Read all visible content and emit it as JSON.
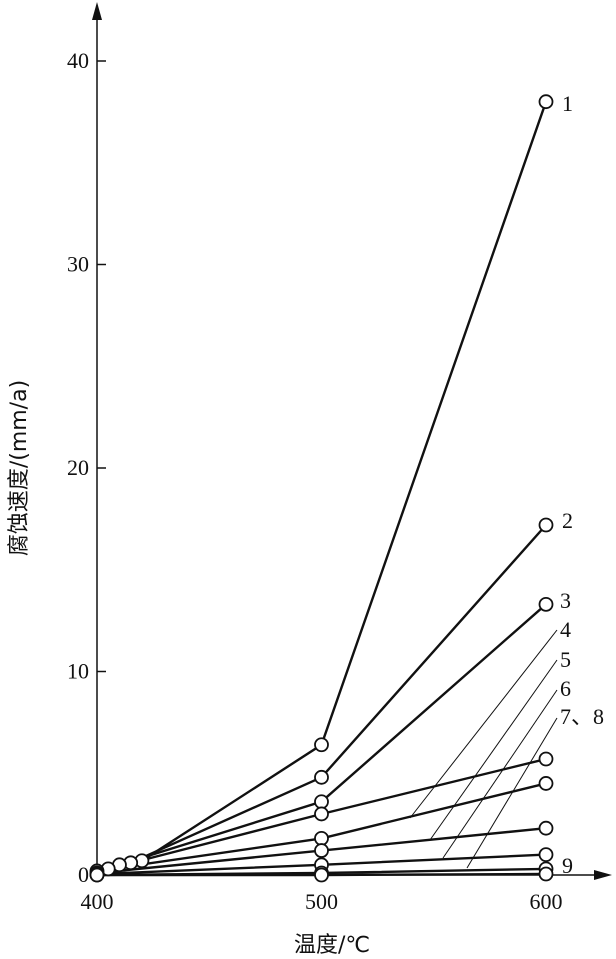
{
  "chart_data": {
    "type": "line",
    "xlabel": "温度/℃",
    "ylabel": "腐蚀速度/(mm/a)",
    "xlim": [
      400,
      600
    ],
    "ylim": [
      0,
      40
    ],
    "x_ticks": [
      "400",
      "500",
      "600"
    ],
    "y_ticks": [
      "0",
      "10",
      "20",
      "30",
      "40"
    ],
    "grid": false,
    "series": [
      {
        "name": "1",
        "x": [
          420,
          500,
          600
        ],
        "y": [
          0.7,
          6.4,
          38.0
        ]
      },
      {
        "name": "2",
        "x": [
          415,
          500,
          600
        ],
        "y": [
          0.6,
          4.8,
          17.2
        ]
      },
      {
        "name": "3",
        "x": [
          410,
          500,
          600
        ],
        "y": [
          0.5,
          3.6,
          13.3
        ]
      },
      {
        "name": "4",
        "x": [
          405,
          500,
          600
        ],
        "y": [
          0.3,
          3.0,
          5.7
        ]
      },
      {
        "name": "5",
        "x": [
          400,
          500,
          600
        ],
        "y": [
          0.2,
          1.8,
          4.5
        ]
      },
      {
        "name": "6",
        "x": [
          400,
          500,
          600
        ],
        "y": [
          0.1,
          1.2,
          2.3
        ]
      },
      {
        "name": "7、8",
        "x": [
          400,
          500,
          600
        ],
        "y": [
          0.05,
          0.5,
          1.0
        ]
      },
      {
        "name": "9",
        "x": [
          400,
          500,
          600
        ],
        "y": [
          0.0,
          0.1,
          0.3
        ]
      },
      {
        "name": "",
        "x": [
          400,
          500,
          600
        ],
        "y": [
          0.0,
          0.0,
          0.05
        ]
      }
    ]
  }
}
